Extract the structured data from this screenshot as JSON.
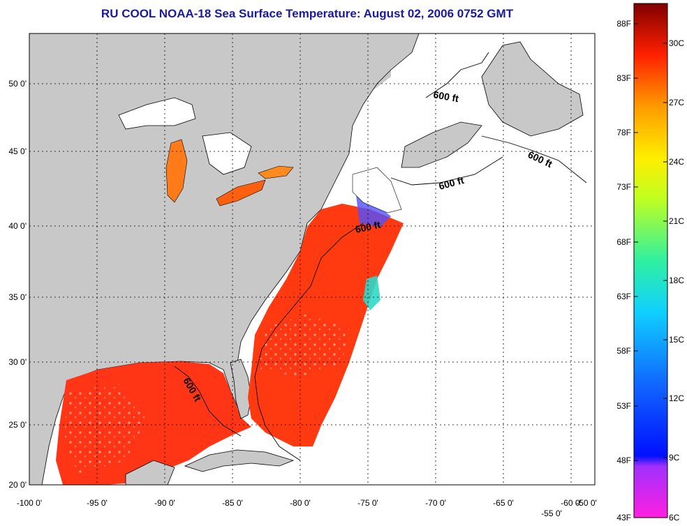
{
  "title": "RU COOL  NOAA-18  Sea Surface Temperature:  August 02, 2006 0752 GMT",
  "map": {
    "x_ticks": [
      "-100 0'",
      "-95 0'",
      "-90 0'",
      "-85 0'",
      "-80 0'",
      "-75 0'",
      "-70 0'",
      "-65 0'",
      "-60 0'",
      "-55 0'",
      "-50 0'"
    ],
    "y_ticks": [
      "50 0'",
      "45 0'",
      "40 0'",
      "35 0'",
      "30 0'",
      "25 0'",
      "20 0'"
    ],
    "contour_labels": [
      "600 ft",
      "600 ft",
      "600 ft",
      "600 ft",
      "600 ft"
    ],
    "colors": {
      "land": "#c8c8c8",
      "no_data": "#ffffff",
      "warm_water": "#ff3a10",
      "grid": "#000000"
    }
  },
  "colorbar": {
    "fahrenheit_ticks": [
      "88F",
      "83F",
      "78F",
      "73F",
      "68F",
      "63F",
      "58F",
      "53F",
      "48F",
      "43F"
    ],
    "celsius_ticks": [
      "30C",
      "27C",
      "24C",
      "21C",
      "18C",
      "15C",
      "12C",
      "9C",
      "6C"
    ]
  }
}
